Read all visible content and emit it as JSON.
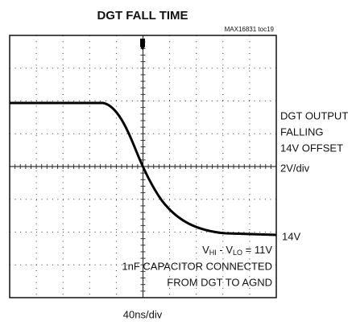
{
  "chart_data": {
    "type": "scope",
    "title": "DGT FALL TIME",
    "figure_id": "MAX16831 toc19",
    "channel_label": [
      "DGT OUTPUT",
      "FALLING",
      "14V OFFSET",
      "2V/div"
    ],
    "ground_label": "14V",
    "annotation": {
      "v": "V",
      "hi": "HI",
      "minus": " - V",
      "lo": "LO",
      "equals": " = 11V"
    },
    "notes": [
      "1nF CAPACITOR CONNECTED",
      "FROM DGT TO AGND"
    ],
    "time_scale": "40ns/div"
  }
}
